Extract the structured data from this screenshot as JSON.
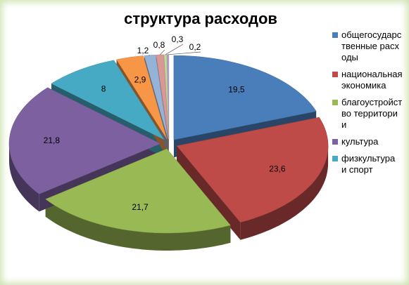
{
  "chart_data": {
    "type": "pie",
    "title": "структура расходов",
    "categories": [
      "общегосударственные расходы",
      "национальная экономика",
      "благоустройство территории",
      "культура",
      "физкультура и спорт",
      null,
      null,
      null,
      null,
      null
    ],
    "values": [
      19.5,
      23.6,
      21.7,
      21.8,
      8,
      2.9,
      1.2,
      0.8,
      0.3,
      0.2
    ],
    "value_labels": [
      "19,5",
      "23,6",
      "21,7",
      "21,8",
      "8",
      "2,9",
      "1,2",
      "0,8",
      "0,3",
      "0,2"
    ],
    "colors": [
      "#4a7ebb",
      "#be4b48",
      "#98b954",
      "#7d60a0",
      "#46aac5",
      "#f79646",
      "#95b3d7",
      "#d99795",
      "#c3d69b",
      "#b3a2c7"
    ],
    "legend": "right"
  }
}
